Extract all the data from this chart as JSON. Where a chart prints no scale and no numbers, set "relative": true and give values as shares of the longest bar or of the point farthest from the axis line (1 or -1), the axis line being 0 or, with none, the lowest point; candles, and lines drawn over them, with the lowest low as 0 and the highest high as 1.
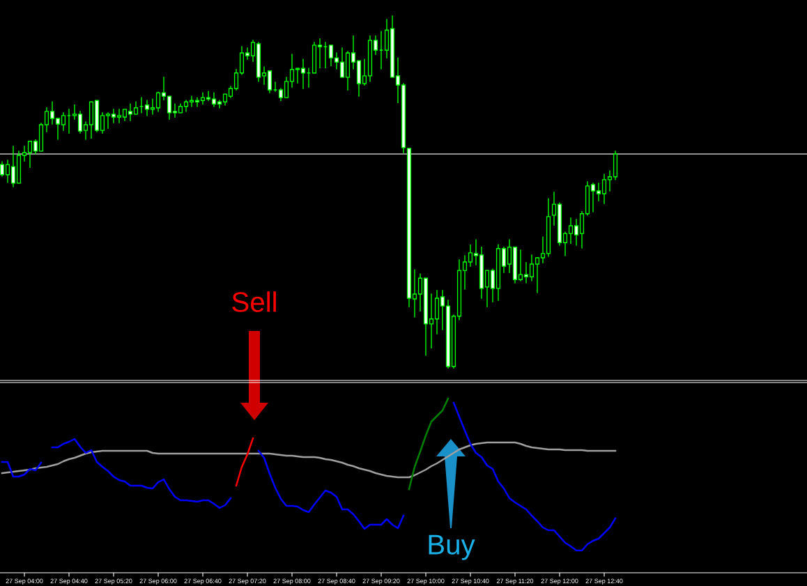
{
  "chart_data": [
    {
      "type": "candlestick",
      "relative": true,
      "color": "#00ff00",
      "tick_labels": false,
      "categories": [
        null,
        null,
        null,
        null,
        null,
        null,
        null,
        null,
        null,
        null,
        null,
        null,
        null,
        null,
        null,
        null,
        null,
        null,
        null,
        null,
        null,
        null,
        null,
        null,
        null,
        null,
        null,
        null,
        null,
        null,
        null,
        null,
        null,
        null,
        null,
        null,
        null,
        null,
        null,
        null,
        null,
        null,
        null,
        null,
        null,
        null,
        null,
        null,
        null,
        null,
        null,
        null,
        null,
        null,
        null,
        null,
        null,
        null,
        null,
        null,
        null,
        null,
        null,
        null,
        null,
        null,
        null,
        null,
        null,
        null,
        null,
        null,
        null,
        null,
        null,
        null,
        null,
        null,
        null,
        null,
        null,
        null,
        null,
        null,
        null,
        null,
        null,
        null,
        null,
        null,
        null,
        null,
        null,
        null,
        null,
        null,
        null,
        null,
        null,
        null,
        null,
        null,
        null,
        null,
        null,
        null,
        null,
        null,
        null,
        null,
        null
      ],
      "ohlc": [
        [
          0.578,
          0.586,
          0.545,
          0.549
        ],
        [
          0.549,
          0.59,
          0.527,
          0.578
        ],
        [
          0.572,
          0.63,
          0.515,
          0.525
        ],
        [
          0.525,
          0.616,
          0.525,
          0.604
        ],
        [
          0.604,
          0.63,
          0.588,
          0.612
        ],
        [
          0.612,
          0.644,
          0.57,
          0.644
        ],
        [
          0.644,
          0.648,
          0.608,
          0.616
        ],
        [
          0.616,
          0.695,
          0.616,
          0.691
        ],
        [
          0.691,
          0.739,
          0.671,
          0.729
        ],
        [
          0.729,
          0.756,
          0.693,
          0.709
        ],
        [
          0.709,
          0.709,
          0.65,
          0.693
        ],
        [
          0.691,
          0.725,
          0.675,
          0.717
        ],
        [
          0.717,
          0.735,
          0.667,
          0.717
        ],
        [
          0.717,
          0.747,
          0.707,
          0.721
        ],
        [
          0.721,
          0.729,
          0.667,
          0.673
        ],
        [
          0.675,
          0.699,
          0.65,
          0.691
        ],
        [
          0.691,
          0.756,
          0.653,
          0.756
        ],
        [
          0.76,
          0.76,
          0.671,
          0.675
        ],
        [
          0.675,
          0.725,
          0.667,
          0.717
        ],
        [
          0.717,
          0.725,
          0.681,
          0.721
        ],
        [
          0.721,
          0.735,
          0.697,
          0.713
        ],
        [
          0.713,
          0.735,
          0.697,
          0.717
        ],
        [
          0.713,
          0.735,
          0.703,
          0.735
        ],
        [
          0.729,
          0.75,
          0.703,
          0.721
        ],
        [
          0.721,
          0.756,
          0.721,
          0.739
        ],
        [
          0.743,
          0.768,
          0.725,
          0.743
        ],
        [
          0.747,
          0.76,
          0.717,
          0.735
        ],
        [
          0.735,
          0.764,
          0.721,
          0.739
        ],
        [
          0.739,
          0.784,
          0.729,
          0.782
        ],
        [
          0.782,
          0.826,
          0.762,
          0.772
        ],
        [
          0.772,
          0.772,
          0.707,
          0.725
        ],
        [
          0.729,
          0.75,
          0.713,
          0.725
        ],
        [
          0.725,
          0.75,
          0.725,
          0.743
        ],
        [
          0.743,
          0.76,
          0.729,
          0.756
        ],
        [
          0.756,
          0.772,
          0.743,
          0.76
        ],
        [
          0.76,
          0.768,
          0.743,
          0.756
        ],
        [
          0.76,
          0.782,
          0.75,
          0.768
        ],
        [
          0.768,
          0.786,
          0.76,
          0.764
        ],
        [
          0.764,
          0.782,
          0.743,
          0.75
        ],
        [
          0.756,
          0.76,
          0.739,
          0.75
        ],
        [
          0.756,
          0.778,
          0.747,
          0.778
        ],
        [
          0.772,
          0.8,
          0.768,
          0.794
        ],
        [
          0.794,
          0.848,
          0.79,
          0.838
        ],
        [
          0.838,
          0.913,
          0.834,
          0.895
        ],
        [
          0.895,
          0.909,
          0.877,
          0.887
        ],
        [
          0.887,
          0.931,
          0.871,
          0.925
        ],
        [
          0.921,
          0.925,
          0.814,
          0.826
        ],
        [
          0.83,
          0.855,
          0.806,
          0.838
        ],
        [
          0.844,
          0.844,
          0.782,
          0.79
        ],
        [
          0.79,
          0.812,
          0.786,
          0.79
        ],
        [
          0.79,
          0.794,
          0.76,
          0.768
        ],
        [
          0.768,
          0.826,
          0.768,
          0.814
        ],
        [
          0.814,
          0.891,
          0.798,
          0.848
        ],
        [
          0.848,
          0.851,
          0.81,
          0.851
        ],
        [
          0.851,
          0.877,
          0.794,
          0.838
        ],
        [
          0.838,
          0.851,
          0.798,
          0.838
        ],
        [
          0.838,
          0.925,
          0.838,
          0.917
        ],
        [
          0.917,
          0.935,
          0.853,
          0.913
        ],
        [
          0.913,
          0.925,
          0.853,
          0.913
        ],
        [
          0.917,
          0.917,
          0.859,
          0.881
        ],
        [
          0.881,
          0.895,
          0.85,
          0.869
        ],
        [
          0.869,
          0.909,
          0.826,
          0.826
        ],
        [
          0.826,
          0.899,
          0.79,
          0.895
        ],
        [
          0.895,
          0.943,
          0.85,
          0.869
        ],
        [
          0.873,
          0.873,
          0.772,
          0.808
        ],
        [
          0.808,
          0.877,
          0.804,
          0.83
        ],
        [
          0.83,
          0.943,
          0.814,
          0.931
        ],
        [
          0.931,
          0.943,
          0.891,
          0.903
        ],
        [
          0.903,
          0.956,
          0.85,
          0.903
        ],
        [
          0.903,
          0.99,
          0.881,
          0.96
        ],
        [
          0.964,
          1,
          0.826,
          0.826
        ],
        [
          0.83,
          0.881,
          0.754,
          0.804
        ],
        [
          0.804,
          0.808,
          0.612,
          0.626
        ],
        [
          0.624,
          0.624,
          0.174,
          0.198
        ],
        [
          0.196,
          0.279,
          0.145,
          0.21
        ],
        [
          0.21,
          0.267,
          0.162,
          0.255
        ],
        [
          0.255,
          0.255,
          0.036,
          0.125
        ],
        [
          0.125,
          0.21,
          0.057,
          0.139
        ],
        [
          0.139,
          0.22,
          0.097,
          0.198
        ],
        [
          0.202,
          0.22,
          0.109,
          0.176
        ],
        [
          0.176,
          0.192,
          0,
          0.004
        ],
        [
          0.004,
          0.15,
          0,
          0.147
        ],
        [
          0.147,
          0.307,
          0.137,
          0.277
        ],
        [
          0.277,
          0.319,
          0.224,
          0.301
        ],
        [
          0.301,
          0.349,
          0.289,
          0.327
        ],
        [
          0.325,
          0.364,
          0.293,
          0.319
        ],
        [
          0.321,
          0.343,
          0.198,
          0.226
        ],
        [
          0.23,
          0.277,
          0.174,
          0.277
        ],
        [
          0.277,
          0.281,
          0.188,
          0.226
        ],
        [
          0.226,
          0.35,
          0.192,
          0.339
        ],
        [
          0.339,
          0.343,
          0.271,
          0.289
        ],
        [
          0.295,
          0.364,
          0.271,
          0.343
        ],
        [
          0.343,
          0.343,
          0.242,
          0.251
        ],
        [
          0.251,
          0.335,
          0.248,
          0.265
        ],
        [
          0.265,
          0.299,
          0.242,
          0.259
        ],
        [
          0.259,
          0.321,
          0.248,
          0.295
        ],
        [
          0.295,
          0.313,
          0.214,
          0.313
        ],
        [
          0.313,
          0.372,
          0.299,
          0.325
        ],
        [
          0.325,
          0.481,
          0.317,
          0.43
        ],
        [
          0.434,
          0.499,
          0.406,
          0.465
        ],
        [
          0.465,
          0.469,
          0.349,
          0.356
        ],
        [
          0.356,
          0.386,
          0.319,
          0.382
        ],
        [
          0.382,
          0.426,
          0.354,
          0.404
        ],
        [
          0.404,
          0.422,
          0.349,
          0.378
        ],
        [
          0.382,
          0.444,
          0.341,
          0.438
        ],
        [
          0.438,
          0.529,
          0.434,
          0.517
        ],
        [
          0.521,
          0.525,
          0.444,
          0.503
        ],
        [
          0.503,
          0.525,
          0.475,
          0.495
        ],
        [
          0.495,
          0.55,
          0.467,
          0.535
        ],
        [
          0.535,
          0.56,
          0.503,
          0.543
        ],
        [
          0.543,
          0.616,
          0.535,
          0.608
        ]
      ],
      "ref_lines": [
        {
          "axis": "y",
          "value": 0.608,
          "color": "#c0c0c0"
        }
      ]
    },
    {
      "type": "line",
      "relative": true,
      "tick_labels": "x",
      "marker": "none",
      "line_style": "solid",
      "categories": [
        null,
        null,
        null,
        null,
        "27 Sep 04:00",
        null,
        null,
        null,
        null,
        null,
        null,
        null,
        "27 Sep 04:40",
        null,
        null,
        null,
        null,
        null,
        null,
        null,
        "27 Sep 05:20",
        null,
        null,
        null,
        null,
        null,
        null,
        null,
        "27 Sep 06:00",
        null,
        null,
        null,
        null,
        null,
        null,
        null,
        "27 Sep 06:40",
        null,
        null,
        null,
        null,
        null,
        null,
        null,
        "27 Sep 07:20",
        null,
        null,
        null,
        null,
        null,
        null,
        null,
        "27 Sep 08:00",
        null,
        null,
        null,
        null,
        null,
        null,
        null,
        "27 Sep 08:40",
        null,
        null,
        null,
        null,
        null,
        null,
        null,
        "27 Sep 09:20",
        null,
        null,
        null,
        null,
        null,
        null,
        null,
        "27 Sep 10:00",
        null,
        null,
        null,
        null,
        null,
        null,
        null,
        "27 Sep 10:40",
        null,
        null,
        null,
        null,
        null,
        null,
        null,
        "27 Sep 11:20",
        null,
        null,
        null,
        null,
        null,
        null,
        null,
        "27 Sep 12:00",
        null,
        null,
        null,
        null,
        null,
        null,
        null,
        "27 Sep 12:40",
        null,
        null
      ],
      "series": [
        {
          "color": "#a0a0a0",
          "values": [
            0.572,
            0.576,
            0.58,
            0.584,
            0.588,
            0.592,
            0.6,
            0.604,
            0.608,
            0.616,
            0.624,
            0.64,
            0.652,
            0.66,
            0.672,
            0.684,
            0.692,
            0.696,
            0.7,
            0.7,
            0.7,
            0.7,
            0.7,
            0.7,
            0.7,
            0.7,
            0.7,
            0.688,
            0.684,
            0.684,
            0.684,
            0.684,
            0.684,
            0.684,
            0.684,
            0.684,
            0.684,
            0.684,
            0.684,
            0.684,
            0.684,
            0.684,
            0.684,
            0.684,
            0.684,
            0.684,
            0.684,
            0.684,
            0.684,
            0.68,
            0.676,
            0.672,
            0.672,
            0.668,
            0.664,
            0.664,
            0.664,
            0.66,
            0.652,
            0.648,
            0.64,
            0.632,
            0.62,
            0.612,
            0.6,
            0.592,
            0.584,
            0.572,
            0.564,
            0.556,
            0.552,
            0.548,
            0.548,
            0.548,
            0.56,
            0.576,
            0.592,
            0.612,
            0.628,
            0.648,
            0.668,
            0.688,
            0.708,
            0.72,
            0.732,
            0.74,
            0.744,
            0.748,
            0.748,
            0.748,
            0.748,
            0.748,
            0.748,
            0.74,
            0.728,
            0.72,
            0.716,
            0.712,
            0.708,
            0.708,
            0.708,
            0.704,
            0.704,
            0.704,
            0.704,
            0.7,
            0.7,
            0.7,
            0.7,
            0.7,
            0.7
          ]
        },
        {
          "color": "#0000ff",
          "values": [
            0.636,
            0.636,
            0.552,
            0.552,
            0.564,
            0.596,
            0.588,
            0.632,
            null,
            0.72,
            0.72,
            0.74,
            0.752,
            0.768,
            0.724,
            0.688,
            0.704,
            0.636,
            0.608,
            0.584,
            0.552,
            0.532,
            0.524,
            0.5,
            0.5,
            0.5,
            0.488,
            0.484,
            0.52,
            0.536,
            0.48,
            0.436,
            0.416,
            0.416,
            0.412,
            0.408,
            0.416,
            0.416,
            0.396,
            0.372,
            0.388,
            0.428,
            null,
            null,
            null,
            null,
            0.7,
            0.66,
            0.568,
            0.488,
            0.424,
            0.384,
            0.384,
            0.38,
            0.36,
            0.348,
            0.392,
            0.432,
            0.472,
            0.46,
            0.436,
            0.364,
            0.364,
            0.336,
            0.296,
            0.252,
            0.276,
            0.276,
            0.276,
            0.308,
            0.276,
            0.256,
            0.328,
            null,
            null,
            null,
            null,
            null,
            null,
            null,
            null,
            0.976,
            0.896,
            0.816,
            0.74,
            0.688,
            0.664,
            0.616,
            0.596,
            0.524,
            0.484,
            0.428,
            0.404,
            0.384,
            0.364,
            0.328,
            0.296,
            0.26,
            0.244,
            0.244,
            0.208,
            0.172,
            0.152,
            0.128,
            0.128,
            0.164,
            0.184,
            0.196,
            0.228,
            0.26,
            0.312
          ]
        },
        {
          "color": "#ff0000",
          "values": [
            null,
            null,
            null,
            null,
            null,
            null,
            null,
            null,
            null,
            null,
            null,
            null,
            null,
            null,
            null,
            null,
            null,
            null,
            null,
            null,
            null,
            null,
            null,
            null,
            null,
            null,
            null,
            null,
            null,
            null,
            null,
            null,
            null,
            null,
            null,
            null,
            null,
            null,
            null,
            null,
            null,
            null,
            0.5,
            0.608,
            0.68,
            0.772,
            null,
            null,
            null,
            null,
            null,
            null,
            null,
            null,
            null,
            null,
            null,
            null,
            null,
            null,
            null,
            null,
            null,
            null,
            null,
            null,
            null,
            null,
            null,
            null,
            null,
            null,
            null,
            null,
            null,
            null,
            null,
            null,
            null,
            null,
            null,
            null,
            null,
            null,
            null,
            null,
            null,
            null,
            null,
            null,
            null,
            null,
            null,
            null,
            null,
            null,
            null,
            null,
            null,
            null,
            null,
            null,
            null,
            null,
            null,
            null,
            null,
            null,
            null,
            null,
            null
          ]
        },
        {
          "color": "#008000",
          "values": [
            null,
            null,
            null,
            null,
            null,
            null,
            null,
            null,
            null,
            null,
            null,
            null,
            null,
            null,
            null,
            null,
            null,
            null,
            null,
            null,
            null,
            null,
            null,
            null,
            null,
            null,
            null,
            null,
            null,
            null,
            null,
            null,
            null,
            null,
            null,
            null,
            null,
            null,
            null,
            null,
            null,
            null,
            null,
            null,
            null,
            null,
            null,
            null,
            null,
            null,
            null,
            null,
            null,
            null,
            null,
            null,
            null,
            null,
            null,
            null,
            null,
            null,
            null,
            null,
            null,
            null,
            null,
            null,
            null,
            null,
            null,
            null,
            null,
            0.48,
            0.608,
            0.696,
            0.788,
            0.868,
            0.9,
            0.932,
            1.0,
            null,
            null,
            null,
            null,
            null,
            null,
            null,
            null,
            null,
            null,
            null,
            null,
            null,
            null,
            null,
            null,
            null,
            null,
            null,
            null,
            null,
            null,
            null,
            null,
            null,
            null,
            null,
            null,
            null,
            null
          ]
        }
      ],
      "annotations": [
        "Sell",
        "Buy"
      ]
    }
  ]
}
